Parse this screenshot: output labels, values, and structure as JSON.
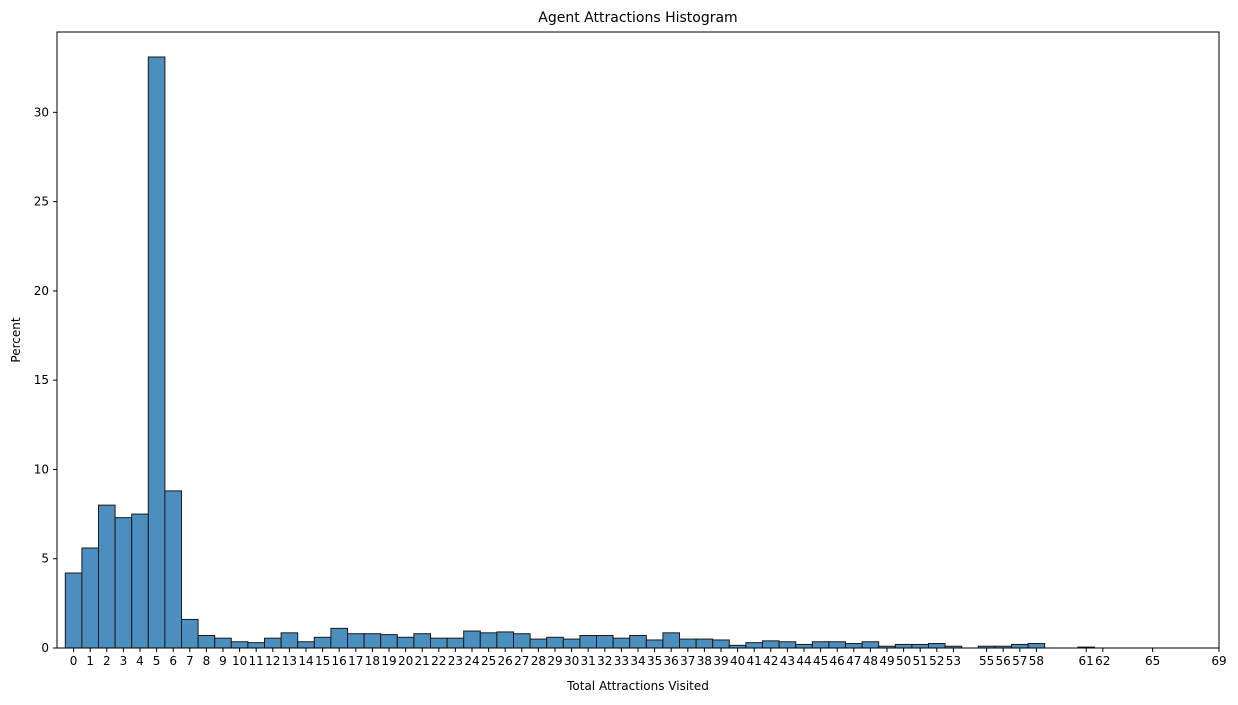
{
  "chart_data": {
    "type": "bar",
    "title": "Agent Attractions Histogram",
    "xlabel": "Total Attractions Visited",
    "ylabel": "Percent",
    "xlim": [
      -1,
      69
    ],
    "ylim": [
      0,
      34.5
    ],
    "xticks": [
      0,
      1,
      2,
      3,
      4,
      5,
      6,
      7,
      8,
      9,
      10,
      11,
      12,
      13,
      14,
      15,
      16,
      17,
      18,
      19,
      20,
      21,
      22,
      23,
      24,
      25,
      26,
      27,
      28,
      29,
      30,
      31,
      32,
      33,
      34,
      35,
      36,
      37,
      38,
      39,
      40,
      41,
      42,
      43,
      44,
      45,
      46,
      47,
      48,
      49,
      50,
      51,
      52,
      53,
      55,
      56,
      57,
      58,
      61,
      62,
      65,
      69
    ],
    "yticks": [
      0,
      5,
      10,
      15,
      20,
      25,
      30
    ],
    "bin_width": 1,
    "grid": false,
    "bar_color": "#4C8EBF",
    "edge_color": "#1a1a1a",
    "series": [
      {
        "x": [
          0,
          1,
          2,
          3,
          4,
          5,
          6,
          7,
          8,
          9,
          10,
          11,
          12,
          13,
          14,
          15,
          16,
          17,
          18,
          19,
          20,
          21,
          22,
          23,
          24,
          25,
          26,
          27,
          28,
          29,
          30,
          31,
          32,
          33,
          34,
          35,
          36,
          37,
          38,
          39,
          40,
          41,
          42,
          43,
          44,
          45,
          46,
          47,
          48,
          49,
          50,
          51,
          52,
          53,
          55,
          56,
          57,
          58,
          61
        ],
        "values": [
          4.2,
          5.6,
          8.0,
          7.3,
          7.5,
          33.1,
          8.8,
          1.6,
          0.7,
          0.55,
          0.35,
          0.3,
          0.55,
          0.85,
          0.35,
          0.6,
          1.1,
          0.8,
          0.8,
          0.75,
          0.6,
          0.8,
          0.55,
          0.55,
          0.95,
          0.85,
          0.9,
          0.8,
          0.5,
          0.6,
          0.5,
          0.7,
          0.7,
          0.55,
          0.7,
          0.45,
          0.85,
          0.5,
          0.5,
          0.45,
          0.15,
          0.3,
          0.4,
          0.35,
          0.2,
          0.35,
          0.35,
          0.25,
          0.35,
          0.1,
          0.2,
          0.2,
          0.25,
          0.1,
          0.1,
          0.1,
          0.2,
          0.25,
          0.05
        ]
      }
    ]
  }
}
